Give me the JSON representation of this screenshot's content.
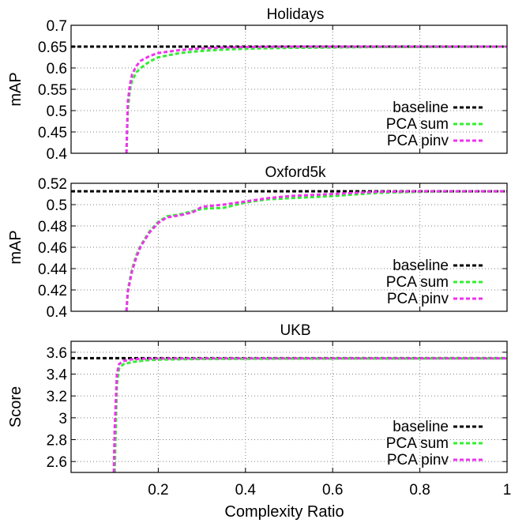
{
  "colors": {
    "baseline": "#000000",
    "pca_sum": "#33ee33",
    "pca_pinv": "#ee33ee",
    "grid": "#808080"
  },
  "chart_data": [
    {
      "type": "line",
      "title": "Holidays",
      "xlabel": "",
      "ylabel": "mAP",
      "xlim": [
        0,
        1
      ],
      "ylim": [
        0.4,
        0.7
      ],
      "yticks": [
        "0.4",
        "0.45",
        "0.5",
        "0.55",
        "0.6",
        "0.65",
        "0.7"
      ],
      "xticks": [],
      "grid": true,
      "legend_position": "bottom-right",
      "series": [
        {
          "name": "baseline",
          "x": [
            0,
            1
          ],
          "y": [
            0.65,
            0.65
          ]
        },
        {
          "name": "PCA sum",
          "x": [
            0.127,
            0.13,
            0.135,
            0.14,
            0.15,
            0.16,
            0.18,
            0.2,
            0.25,
            0.3,
            0.35,
            0.4,
            0.5,
            0.6,
            0.7,
            0.8,
            1.0
          ],
          "y": [
            0.4,
            0.5,
            0.55,
            0.57,
            0.59,
            0.6,
            0.615,
            0.625,
            0.635,
            0.64,
            0.643,
            0.645,
            0.647,
            0.648,
            0.649,
            0.649,
            0.65
          ]
        },
        {
          "name": "PCA pinv",
          "x": [
            0.127,
            0.13,
            0.135,
            0.14,
            0.15,
            0.16,
            0.18,
            0.2,
            0.25,
            0.3,
            0.35,
            0.4,
            0.5,
            0.6,
            0.7,
            0.8,
            1.0
          ],
          "y": [
            0.4,
            0.52,
            0.56,
            0.585,
            0.605,
            0.617,
            0.628,
            0.635,
            0.642,
            0.646,
            0.648,
            0.649,
            0.65,
            0.65,
            0.65,
            0.65,
            0.65
          ]
        }
      ]
    },
    {
      "type": "line",
      "title": "Oxford5k",
      "xlabel": "",
      "ylabel": "mAP",
      "xlim": [
        0,
        1
      ],
      "ylim": [
        0.4,
        0.52
      ],
      "yticks": [
        "0.4",
        "0.42",
        "0.44",
        "0.46",
        "0.48",
        "0.5",
        "0.52"
      ],
      "xticks": [],
      "grid": true,
      "legend_position": "bottom-right",
      "series": [
        {
          "name": "baseline",
          "x": [
            0,
            1
          ],
          "y": [
            0.5125,
            0.5125
          ]
        },
        {
          "name": "PCA sum",
          "x": [
            0.127,
            0.13,
            0.14,
            0.15,
            0.16,
            0.18,
            0.2,
            0.22,
            0.25,
            0.28,
            0.3,
            0.35,
            0.4,
            0.45,
            0.5,
            0.6,
            0.7,
            0.8,
            1.0
          ],
          "y": [
            0.4,
            0.42,
            0.44,
            0.453,
            0.462,
            0.475,
            0.484,
            0.489,
            0.491,
            0.494,
            0.496,
            0.497,
            0.502,
            0.505,
            0.506,
            0.508,
            0.511,
            0.512,
            0.5125
          ]
        },
        {
          "name": "PCA pinv",
          "x": [
            0.127,
            0.13,
            0.14,
            0.15,
            0.16,
            0.18,
            0.2,
            0.22,
            0.25,
            0.28,
            0.3,
            0.35,
            0.4,
            0.45,
            0.5,
            0.6,
            0.7,
            0.8,
            1.0
          ],
          "y": [
            0.4,
            0.418,
            0.438,
            0.451,
            0.461,
            0.474,
            0.483,
            0.488,
            0.49,
            0.493,
            0.498,
            0.5,
            0.503,
            0.506,
            0.508,
            0.51,
            0.512,
            0.5125,
            0.5125
          ]
        }
      ]
    },
    {
      "type": "line",
      "title": "UKB",
      "xlabel": "Complexity Ratio",
      "ylabel": "Score",
      "xlim": [
        0,
        1
      ],
      "ylim": [
        2.5,
        3.7
      ],
      "yticks": [
        "2.6",
        "2.8",
        "3",
        "3.2",
        "3.4",
        "3.6"
      ],
      "xticks": [
        "0.2",
        "0.4",
        "0.6",
        "0.8",
        "1"
      ],
      "grid": true,
      "legend_position": "bottom-right",
      "series": [
        {
          "name": "baseline",
          "x": [
            0,
            1
          ],
          "y": [
            3.545,
            3.545
          ]
        },
        {
          "name": "PCA sum",
          "x": [
            0.1,
            0.105,
            0.11,
            0.12,
            0.14,
            0.17,
            0.2,
            0.3,
            0.5,
            1.0
          ],
          "y": [
            2.5,
            3.3,
            3.45,
            3.49,
            3.51,
            3.525,
            3.532,
            3.538,
            3.541,
            3.543
          ]
        },
        {
          "name": "PCA pinv",
          "x": [
            0.098,
            0.1,
            0.105,
            0.11,
            0.12,
            0.14,
            0.17,
            0.2,
            0.3,
            0.5,
            1.0
          ],
          "y": [
            2.5,
            2.9,
            3.4,
            3.49,
            3.52,
            3.535,
            3.54,
            3.542,
            3.543,
            3.544,
            3.544
          ]
        }
      ]
    }
  ]
}
